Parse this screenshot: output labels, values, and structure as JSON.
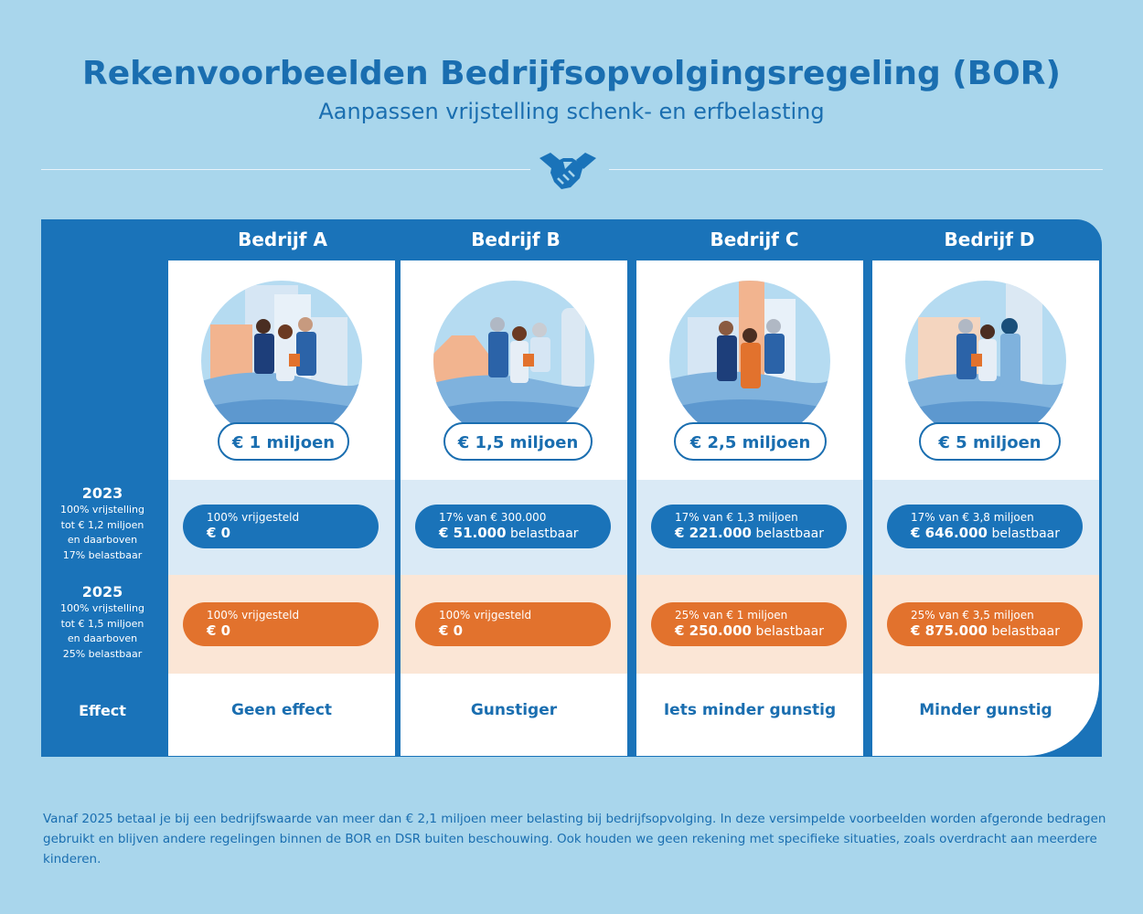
{
  "title": "Rekenvoorbeelden Bedrijfsopvolgingsregeling (BOR)",
  "subtitle": "Aanpassen vrijstelling schenk- en erfbelasting",
  "colors": {
    "blue": "#1a73b9",
    "orange": "#e2722d",
    "background": "#a9d6ec",
    "light_blue": "#daeaf6",
    "light_orange": "#fbe6d6"
  },
  "row_labels": {
    "y2023": {
      "year": "2023",
      "lines": [
        "100% vrijstelling",
        "tot € 1,2 miljoen",
        "en daarboven",
        "17% belastbaar"
      ]
    },
    "y2025": {
      "year": "2025",
      "lines": [
        "100% vrijstelling",
        "tot € 1,5 miljoen",
        "en daarboven",
        "25% belastbaar"
      ]
    },
    "effect": "Effect"
  },
  "companies": [
    {
      "name": "Bedrijf A",
      "value": "€ 1 miljoen",
      "y2023": {
        "line1": "100% vrijgesteld",
        "amount": "€ 0",
        "suffix": ""
      },
      "y2025": {
        "line1": "100% vrijgesteld",
        "amount": "€ 0",
        "suffix": ""
      },
      "effect": "Geen effect"
    },
    {
      "name": "Bedrijf B",
      "value": "€ 1,5 miljoen",
      "y2023": {
        "line1": "17%  van € 300.000",
        "amount": "€ 51.000",
        "suffix": "belastbaar"
      },
      "y2025": {
        "line1": "100% vrijgesteld",
        "amount": "€ 0",
        "suffix": ""
      },
      "effect": "Gunstiger"
    },
    {
      "name": "Bedrijf C",
      "value": "€ 2,5 miljoen",
      "y2023": {
        "line1": "17%  van € 1,3 miljoen",
        "amount": "€ 221.000",
        "suffix": "belastbaar"
      },
      "y2025": {
        "line1": "25%  van € 1 miljoen",
        "amount": "€ 250.000",
        "suffix": "belastbaar"
      },
      "effect": "Iets minder gunstig"
    },
    {
      "name": "Bedrijf D",
      "value": "€ 5 miljoen",
      "y2023": {
        "line1": "17%  van € 3,8 miljoen",
        "amount": "€ 646.000",
        "suffix": "belastbaar"
      },
      "y2025": {
        "line1": "25%  van € 3,5 miljoen",
        "amount": "€ 875.000",
        "suffix": "belastbaar"
      },
      "effect": "Minder gunstig"
    }
  ],
  "footnote": "Vanaf 2025 betaal je bij een bedrijfswaarde van meer dan € 2,1 miljoen meer belasting bij bedrijfsopvolging. In deze versimpelde voorbeelden worden afgeronde bedragen gebruikt en blijven andere regelingen binnen de BOR en DSR buiten beschouwing. Ook houden we geen rekening met specifieke situaties, zoals overdracht aan meerdere kinderen."
}
